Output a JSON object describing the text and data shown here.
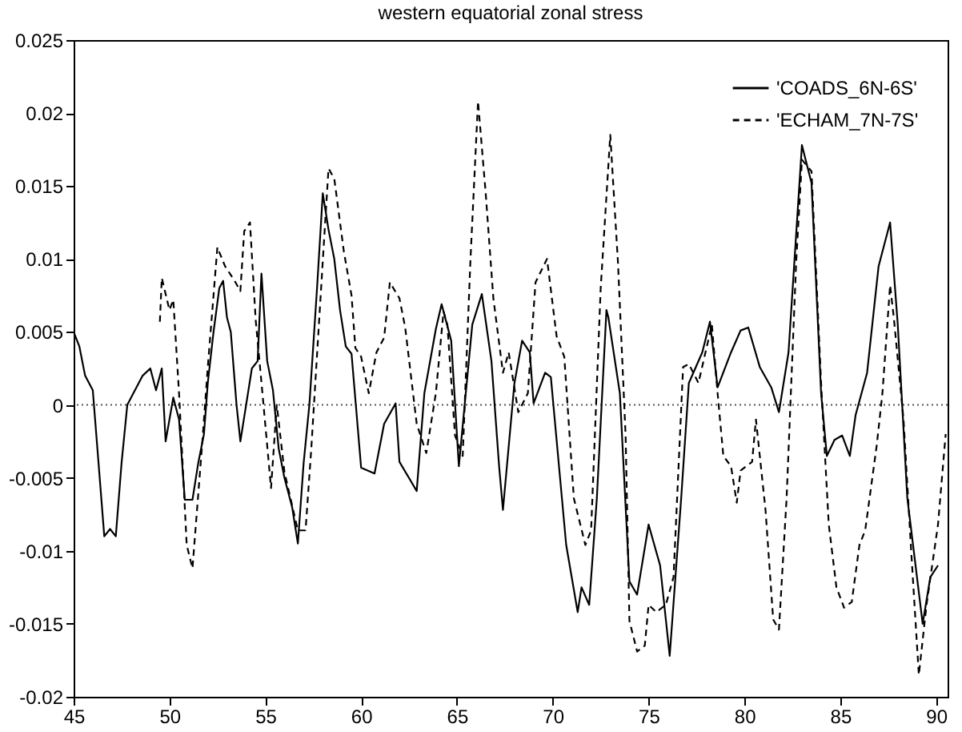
{
  "chart_data": {
    "type": "line",
    "title": "western equatorial zonal stress",
    "xlim": [
      45,
      90.6
    ],
    "xticks": [
      45,
      50,
      55,
      60,
      65,
      70,
      75,
      80,
      85,
      90
    ],
    "ylim": [
      -0.02,
      0.025
    ],
    "yticks": [
      -0.02,
      -0.015,
      -0.01,
      -0.005,
      0,
      0.005,
      0.01,
      0.015,
      0.02,
      0.025
    ],
    "grid": false,
    "legend": "top right",
    "marker": "none",
    "ref_lines": [
      {
        "axis": "y",
        "value": 0,
        "line_style": "dotted",
        "color": "#555555"
      }
    ],
    "series": [
      {
        "name": "'COADS_6N-6S'",
        "color": "#000000",
        "line_style": "solid",
        "x": [
          45.0,
          45.3,
          45.6,
          46.0,
          46.3,
          46.6,
          46.9,
          47.2,
          47.5,
          47.8,
          48.2,
          48.6,
          49.0,
          49.3,
          49.6,
          49.8,
          50.2,
          50.5,
          50.8,
          51.2,
          51.5,
          51.8,
          52.0,
          52.3,
          52.6,
          52.8,
          53.0,
          53.2,
          53.5,
          53.7,
          54.0,
          54.3,
          54.6,
          54.8,
          55.1,
          55.4,
          55.7,
          56.0,
          56.4,
          56.7,
          57.0,
          57.3,
          57.7,
          58.0,
          58.3,
          58.6,
          58.9,
          59.2,
          59.5,
          60.0,
          60.7,
          61.2,
          61.8,
          62.0,
          62.9,
          63.3,
          63.9,
          64.2,
          64.7,
          65.1,
          65.8,
          66.3,
          66.8,
          67.2,
          67.4,
          68.0,
          68.4,
          68.8,
          69.0,
          69.6,
          69.9,
          70.7,
          71.3,
          71.5,
          71.9,
          72.3,
          72.8,
          72.9,
          73.5,
          74.0,
          74.4,
          75.0,
          75.6,
          76.1,
          76.7,
          77.1,
          77.8,
          78.2,
          78.6,
          79.3,
          79.8,
          80.2,
          80.8,
          81.4,
          81.8,
          82.3,
          83.0,
          83.5,
          84.0,
          84.3,
          84.7,
          85.1,
          85.5,
          85.8,
          86.4,
          87.0,
          87.6,
          88.0,
          88.5,
          89.3,
          89.7,
          90.1
        ],
        "values": [
          0.005,
          0.004,
          0.002,
          0.001,
          -0.004,
          -0.009,
          -0.0085,
          -0.009,
          -0.004,
          0.0,
          0.001,
          0.002,
          0.0025,
          0.001,
          0.0025,
          -0.0025,
          0.0005,
          -0.001,
          -0.0065,
          -0.0065,
          -0.004,
          -0.002,
          0.0015,
          0.005,
          0.008,
          0.0085,
          0.006,
          0.005,
          0.0,
          -0.0025,
          0.0,
          0.0025,
          0.003,
          0.009,
          0.003,
          0.001,
          -0.003,
          -0.005,
          -0.007,
          -0.0095,
          -0.004,
          0.0,
          0.008,
          0.0145,
          0.012,
          0.01,
          0.0065,
          0.004,
          0.0035,
          -0.0043,
          -0.0047,
          -0.0013,
          0.0001,
          -0.0039,
          -0.0059,
          0.0008,
          0.0052,
          0.0069,
          0.0044,
          -0.0042,
          0.0055,
          0.0076,
          0.003,
          -0.0042,
          -0.0072,
          0.0015,
          0.0044,
          0.0036,
          0.0001,
          0.0022,
          0.0019,
          -0.0096,
          -0.0142,
          -0.0125,
          -0.0137,
          -0.0064,
          0.0065,
          0.006,
          0.0008,
          -0.0121,
          -0.013,
          -0.0082,
          -0.011,
          -0.0172,
          -0.0064,
          0.0015,
          0.0036,
          0.0057,
          0.0012,
          0.0036,
          0.0051,
          0.0053,
          0.0026,
          0.0012,
          -0.0005,
          0.0036,
          0.0178,
          0.0152,
          0.0008,
          -0.0035,
          -0.0024,
          -0.0021,
          -0.0035,
          -0.0007,
          0.0022,
          0.0095,
          0.0125,
          0.0055,
          -0.0064,
          -0.015,
          -0.0118,
          -0.011
        ]
      },
      {
        "name": "'ECHAM_7N-7S'",
        "color": "#000000",
        "line_style": "dashed",
        "x": [
          49.5,
          49.6,
          50.0,
          50.2,
          50.5,
          50.9,
          51.2,
          51.7,
          52.0,
          52.5,
          52.9,
          53.4,
          53.7,
          53.9,
          54.2,
          54.5,
          54.9,
          55.3,
          55.6,
          56.0,
          56.7,
          57.1,
          57.4,
          58.1,
          58.3,
          58.6,
          59.1,
          59.5,
          59.7,
          60.0,
          60.4,
          60.8,
          61.2,
          61.5,
          62.0,
          62.3,
          62.9,
          63.4,
          63.9,
          64.3,
          64.5,
          64.9,
          65.3,
          65.7,
          66.1,
          66.5,
          66.9,
          67.4,
          67.7,
          68.2,
          68.7,
          69.1,
          69.7,
          70.2,
          70.6,
          71.1,
          71.7,
          72.0,
          72.5,
          73.0,
          73.4,
          73.8,
          74.0,
          74.4,
          74.8,
          75.0,
          75.4,
          75.9,
          76.3,
          76.8,
          77.1,
          77.6,
          78.3,
          78.6,
          78.9,
          79.3,
          79.6,
          79.8,
          80.4,
          80.6,
          81.1,
          81.5,
          81.8,
          82.2,
          82.7,
          83.0,
          83.5,
          84.0,
          84.4,
          84.8,
          85.2,
          85.6,
          86.0,
          86.3,
          86.9,
          87.2,
          87.6,
          87.8,
          88.3,
          88.7,
          89.1,
          89.5,
          90.1,
          90.5
        ],
        "values": [
          0.0057,
          0.0087,
          0.0065,
          0.0072,
          0.0008,
          -0.0096,
          -0.0112,
          -0.0028,
          0.0026,
          0.0108,
          0.0095,
          0.0085,
          0.0078,
          0.0119,
          0.0125,
          0.0058,
          0.0001,
          -0.0057,
          0.0,
          -0.0046,
          -0.0086,
          -0.0086,
          -0.003,
          0.012,
          0.0162,
          0.0155,
          0.0105,
          0.0075,
          0.0039,
          0.0033,
          0.0008,
          0.0036,
          0.0046,
          0.0084,
          0.0073,
          0.0053,
          -0.0013,
          -0.0033,
          0.0008,
          0.0064,
          0.0055,
          -0.0021,
          -0.0035,
          0.0098,
          0.0208,
          0.0145,
          0.0073,
          0.0022,
          0.0036,
          -0.0005,
          0.0008,
          0.0084,
          0.01,
          0.0047,
          0.0033,
          -0.0064,
          -0.0096,
          -0.0086,
          0.008,
          0.0185,
          0.0098,
          -0.0021,
          -0.0148,
          -0.0169,
          -0.0165,
          -0.0137,
          -0.0142,
          -0.0137,
          -0.0118,
          0.0026,
          0.0028,
          0.0015,
          0.0055,
          0.0008,
          -0.0035,
          -0.0042,
          -0.0067,
          -0.0045,
          -0.0039,
          -0.001,
          -0.0072,
          -0.0147,
          -0.0154,
          -0.0064,
          0.0098,
          0.0168,
          0.016,
          0.0015,
          -0.0082,
          -0.0125,
          -0.0139,
          -0.0135,
          -0.0096,
          -0.0086,
          -0.0028,
          0.0008,
          0.0082,
          0.0059,
          -0.001,
          -0.01,
          -0.0185,
          -0.0137,
          -0.0082,
          -0.002
        ]
      }
    ]
  }
}
